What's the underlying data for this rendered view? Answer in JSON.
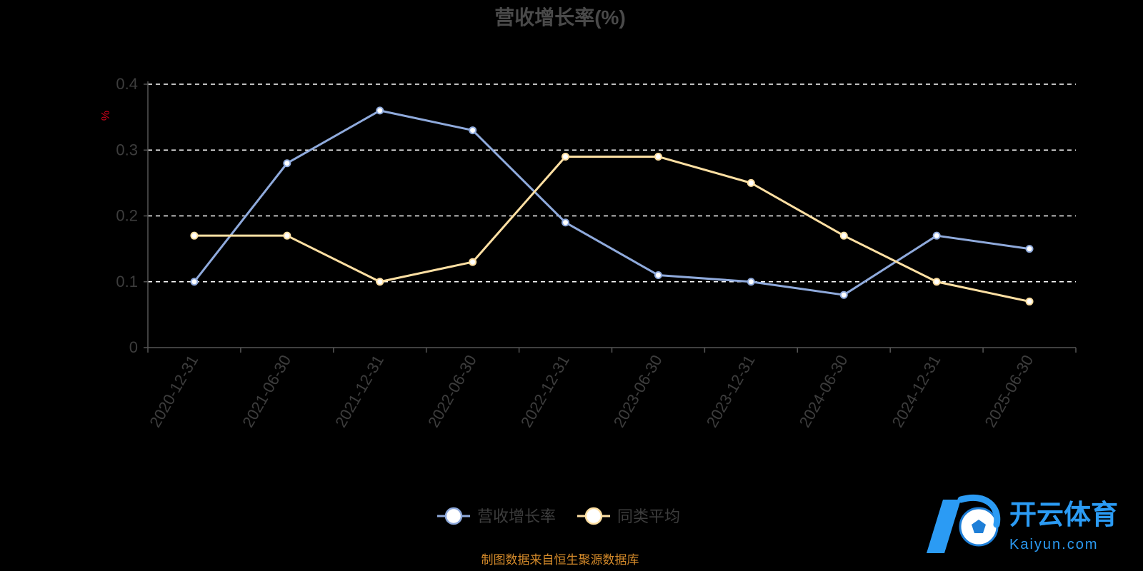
{
  "chart_data": {
    "type": "line",
    "title": "营收增长率(%)",
    "ylabel": "%",
    "categories": [
      "2020-12-31",
      "2021-06-30",
      "2021-12-31",
      "2022-06-30",
      "2022-12-31",
      "2023-06-30",
      "2023-12-31",
      "2024-06-30",
      "2024-12-31",
      "2025-06-30"
    ],
    "ylim": [
      0,
      0.4
    ],
    "yticks": [
      "0",
      "0.1",
      "0.2",
      "0.3",
      "0.4"
    ],
    "grid": true,
    "legend_position": "bottom-center",
    "series": [
      {
        "name": "营收增长率",
        "color": "#8faadc",
        "values": [
          0.1,
          0.28,
          0.36,
          0.33,
          0.19,
          0.11,
          0.1,
          0.08,
          0.17,
          0.15
        ]
      },
      {
        "name": "同类平均",
        "color": "#ffe0a3",
        "values": [
          0.17,
          0.17,
          0.1,
          0.13,
          0.29,
          0.29,
          0.25,
          0.17,
          0.1,
          0.07
        ]
      }
    ],
    "source_note": "制图数据来自恒生聚源数据库"
  },
  "watermark": {
    "brand": "开云体育",
    "domain": "Kaiyun.com",
    "logo_letter": "K",
    "color": "#2b9bf4"
  }
}
